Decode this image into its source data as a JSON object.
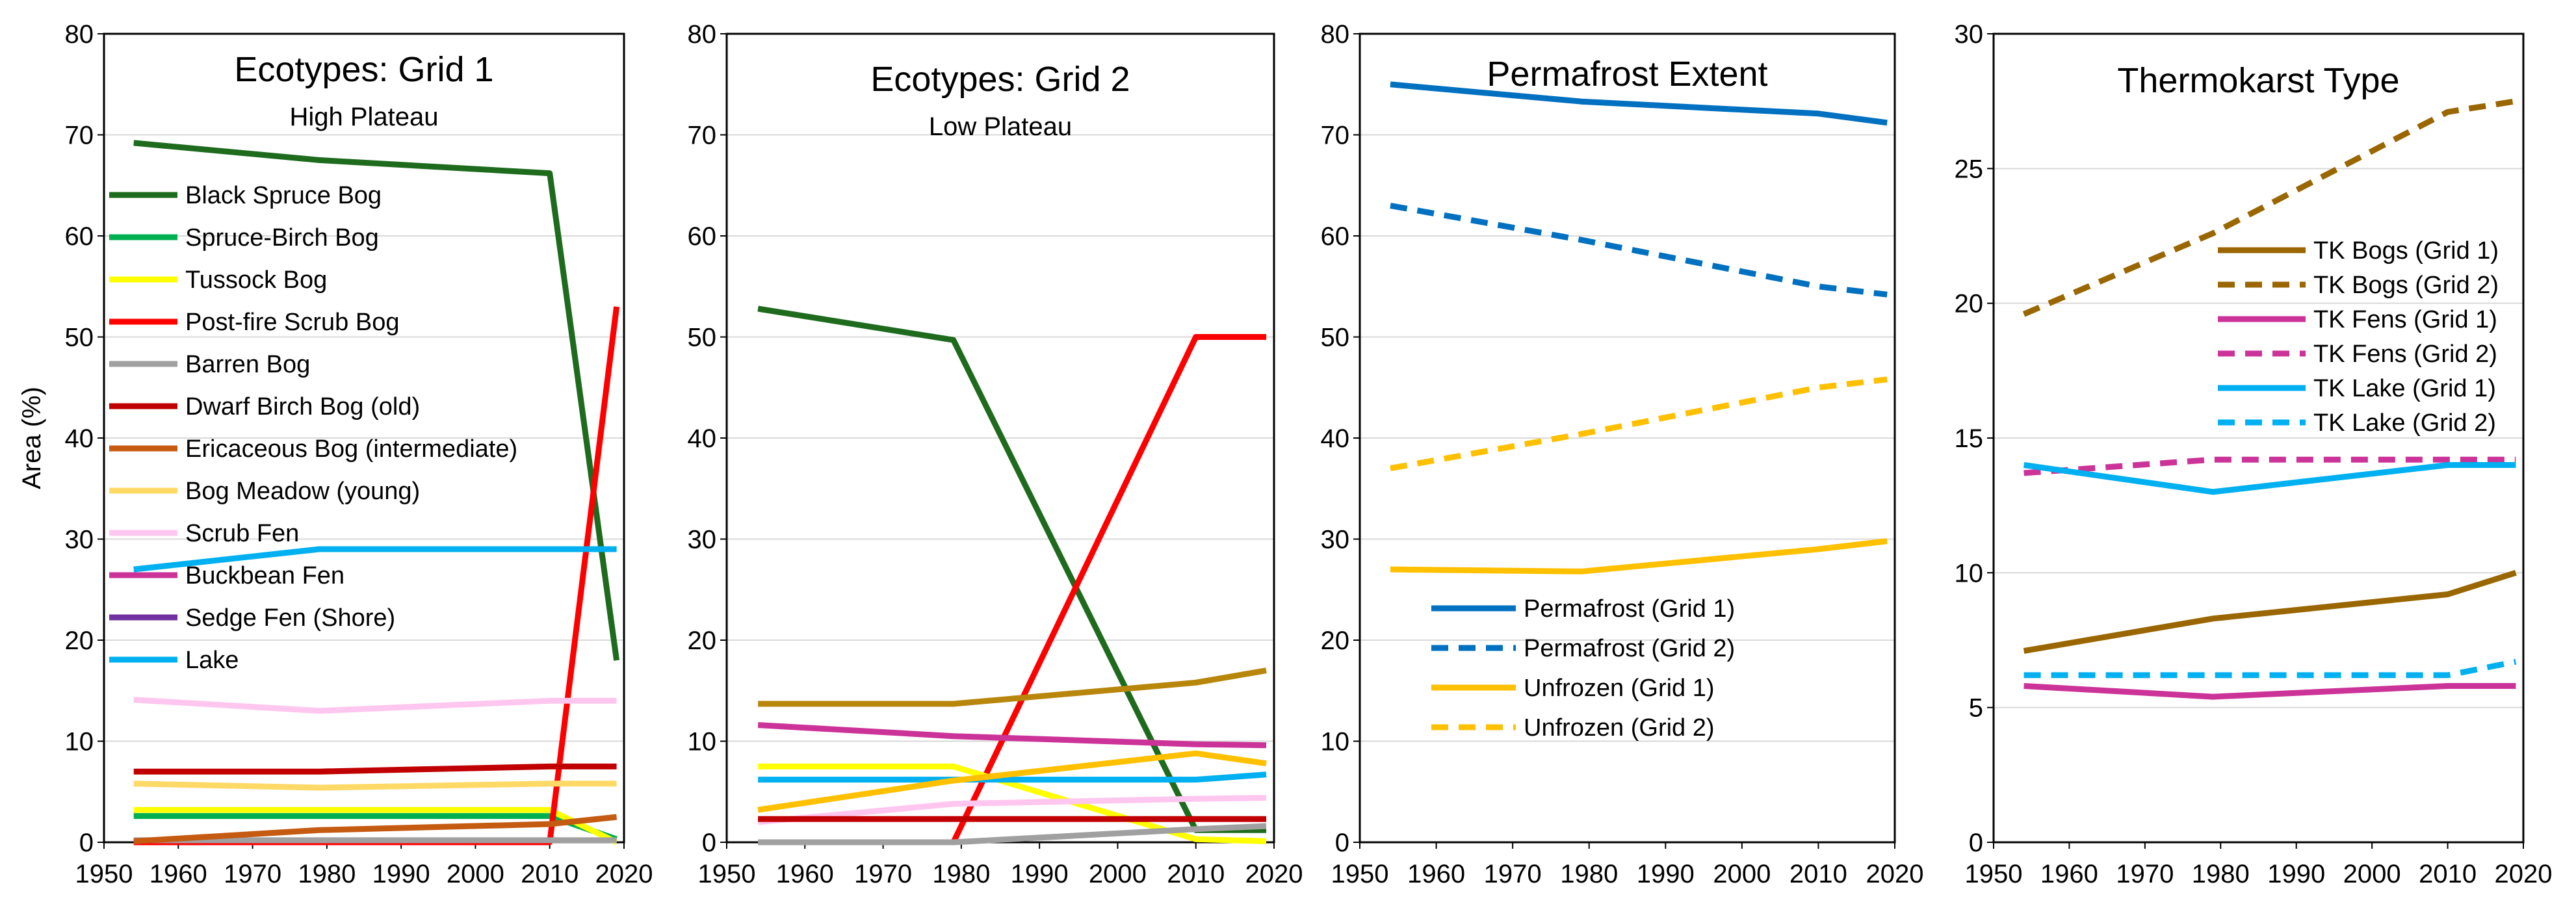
{
  "chart_data": [
    {
      "type": "line",
      "title": "Ecotypes: Grid 1",
      "subtitle": "High Plateau",
      "ylabel": "Area (%)",
      "xlabel": "",
      "xlim": [
        1950,
        2020
      ],
      "ylim": [
        0,
        80
      ],
      "xticks": [
        "1950",
        "1960",
        "1970",
        "1980",
        "1990",
        "2000",
        "2010",
        "2020"
      ],
      "yticks": [
        "0",
        "10",
        "20",
        "30",
        "40",
        "50",
        "60",
        "70",
        "80"
      ],
      "legend_position": "left",
      "series": [
        {
          "name": "Black Spruce Bog",
          "color": "#1e6b1e",
          "dash": "solid",
          "points": [
            [
              1954,
              69.2
            ],
            [
              1979,
              67.5
            ],
            [
              2010,
              66.2
            ],
            [
              2019,
              18
            ]
          ]
        },
        {
          "name": "Spruce-Birch Bog",
          "color": "#00b050",
          "dash": "solid",
          "points": [
            [
              1954,
              2.6
            ],
            [
              1979,
              2.6
            ],
            [
              2010,
              2.6
            ],
            [
              2019,
              0.3
            ]
          ]
        },
        {
          "name": "Tussock Bog",
          "color": "#ffff00",
          "dash": "solid",
          "points": [
            [
              1954,
              3.2
            ],
            [
              1979,
              3.2
            ],
            [
              2010,
              3.2
            ],
            [
              2019,
              0
            ]
          ]
        },
        {
          "name": "Post-fire Scrub Bog",
          "color": "#ff0000",
          "dash": "solid",
          "points": [
            [
              1954,
              0
            ],
            [
              1979,
              0
            ],
            [
              2010,
              0
            ],
            [
              2019,
              53
            ]
          ]
        },
        {
          "name": "Barren Bog",
          "color": "#a0a0a0",
          "dash": "solid",
          "points": [
            [
              1954,
              0.2
            ],
            [
              1979,
              0.2
            ],
            [
              2010,
              0.2
            ],
            [
              2019,
              0.2
            ]
          ]
        },
        {
          "name": "Dwarf Birch Bog (old)",
          "color": "#c00000",
          "dash": "solid",
          "points": [
            [
              1954,
              7
            ],
            [
              1979,
              7
            ],
            [
              2010,
              7.5
            ],
            [
              2019,
              7.5
            ]
          ]
        },
        {
          "name": "Ericaceous Bog (intermediate)",
          "color": "#c55a11",
          "dash": "solid",
          "points": [
            [
              1954,
              0.1
            ],
            [
              1979,
              1.2
            ],
            [
              2010,
              1.8
            ],
            [
              2019,
              2.5
            ]
          ]
        },
        {
          "name": "Bog Meadow (young)",
          "color": "#ffd966",
          "dash": "solid",
          "points": [
            [
              1954,
              5.8
            ],
            [
              1979,
              5.4
            ],
            [
              2010,
              5.8
            ],
            [
              2019,
              5.8
            ]
          ]
        },
        {
          "name": "Scrub Fen",
          "color": "#ffc6f0",
          "dash": "solid",
          "points": [
            [
              1954,
              14.1
            ],
            [
              1979,
              13
            ],
            [
              2010,
              14
            ],
            [
              2019,
              14
            ]
          ]
        },
        {
          "name": "Buckbean Fen",
          "color": "#cc3399",
          "dash": "solid",
          "points": []
        },
        {
          "name": "Sedge Fen (Shore)",
          "color": "#7030a0",
          "dash": "solid",
          "points": []
        },
        {
          "name": "Lake",
          "color": "#00b0f0",
          "dash": "solid",
          "points": [
            [
              1954,
              27
            ],
            [
              1979,
              29
            ],
            [
              2010,
              29
            ],
            [
              2019,
              29
            ]
          ]
        }
      ]
    },
    {
      "type": "line",
      "title": "Ecotypes: Grid 2",
      "subtitle": "Low Plateau",
      "xlim": [
        1950,
        2020
      ],
      "ylim": [
        0,
        80
      ],
      "xticks": [
        "1950",
        "1960",
        "1970",
        "1980",
        "1990",
        "2000",
        "2010",
        "2020"
      ],
      "yticks": [
        "0",
        "10",
        "20",
        "30",
        "40",
        "50",
        "60",
        "70",
        "80"
      ],
      "series": [
        {
          "name": "Black Spruce Bog",
          "color": "#1e6b1e",
          "dash": "solid",
          "points": [
            [
              1954,
              52.8
            ],
            [
              1979,
              49.7
            ],
            [
              2010,
              1.2
            ],
            [
              2019,
              1.2
            ]
          ]
        },
        {
          "name": "Post-fire Scrub Bog",
          "color": "#ff0000",
          "dash": "solid",
          "points": [
            [
              1979,
              0
            ],
            [
              2010,
              50
            ],
            [
              2019,
              50
            ]
          ]
        },
        {
          "name": "Ericaceous Bog (intermediate)",
          "color": "#b8860b",
          "dash": "solid",
          "points": [
            [
              1954,
              13.7
            ],
            [
              1979,
              13.7
            ],
            [
              2010,
              15.8
            ],
            [
              2019,
              17
            ]
          ]
        },
        {
          "name": "Buckbean Fen",
          "color": "#cc3399",
          "dash": "solid",
          "points": [
            [
              1954,
              11.6
            ],
            [
              1979,
              10.5
            ],
            [
              2010,
              9.7
            ],
            [
              2019,
              9.6
            ]
          ]
        },
        {
          "name": "Tussock Bog",
          "color": "#ffff00",
          "dash": "solid",
          "points": [
            [
              1954,
              7.5
            ],
            [
              1979,
              7.5
            ],
            [
              2010,
              0.3
            ],
            [
              2019,
              0.1
            ]
          ]
        },
        {
          "name": "Lake",
          "color": "#00b0f0",
          "dash": "solid",
          "points": [
            [
              1954,
              6.2
            ],
            [
              1979,
              6.2
            ],
            [
              2010,
              6.2
            ],
            [
              2019,
              6.7
            ]
          ]
        },
        {
          "name": "Bog Meadow (young)",
          "color": "#ffc000",
          "dash": "solid",
          "points": [
            [
              1954,
              3.2
            ],
            [
              1979,
              6.1
            ],
            [
              2010,
              8.8
            ],
            [
              2019,
              7.8
            ]
          ]
        },
        {
          "name": "Scrub Fen",
          "color": "#ffc6f0",
          "dash": "solid",
          "points": [
            [
              1954,
              2
            ],
            [
              1979,
              3.8
            ],
            [
              2010,
              4.3
            ],
            [
              2019,
              4.4
            ]
          ]
        },
        {
          "name": "Dwarf Birch Bog (old)",
          "color": "#c00000",
          "dash": "solid",
          "points": [
            [
              1954,
              2.3
            ],
            [
              1979,
              2.3
            ],
            [
              2010,
              2.3
            ],
            [
              2019,
              2.3
            ]
          ]
        },
        {
          "name": "Barren Bog",
          "color": "#a0a0a0",
          "dash": "solid",
          "points": [
            [
              1954,
              0
            ],
            [
              1979,
              0
            ],
            [
              2010,
              1.3
            ],
            [
              2019,
              1.6
            ]
          ]
        }
      ]
    },
    {
      "type": "line",
      "title": "Permafrost Extent",
      "xlim": [
        1950,
        2020
      ],
      "ylim": [
        0,
        80
      ],
      "xticks": [
        "1950",
        "1960",
        "1970",
        "1980",
        "1990",
        "2000",
        "2010",
        "2020"
      ],
      "yticks": [
        "0",
        "10",
        "20",
        "30",
        "40",
        "50",
        "60",
        "70",
        "80"
      ],
      "legend_position": "lower-left",
      "series": [
        {
          "name": "Permafrost (Grid 1)",
          "color": "#0070c0",
          "dash": "solid",
          "points": [
            [
              1954,
              75
            ],
            [
              1979,
              73.3
            ],
            [
              2010,
              72.1
            ],
            [
              2019,
              71.2
            ]
          ]
        },
        {
          "name": "Permafrost (Grid 2)",
          "color": "#0070c0",
          "dash": "dashed",
          "points": [
            [
              1954,
              63
            ],
            [
              1979,
              59.6
            ],
            [
              2010,
              55
            ],
            [
              2019,
              54.2
            ]
          ]
        },
        {
          "name": "Unfrozen (Grid 1)",
          "color": "#ffc000",
          "dash": "solid",
          "points": [
            [
              1954,
              27
            ],
            [
              1979,
              26.8
            ],
            [
              2010,
              29
            ],
            [
              2019,
              29.8
            ]
          ]
        },
        {
          "name": "Unfrozen (Grid 2)",
          "color": "#ffc000",
          "dash": "dashed",
          "points": [
            [
              1954,
              37
            ],
            [
              1979,
              40.4
            ],
            [
              2010,
              45
            ],
            [
              2019,
              45.8
            ]
          ]
        }
      ]
    },
    {
      "type": "line",
      "title": "Thermokarst Type",
      "xlim": [
        1950,
        2020
      ],
      "ylim": [
        0,
        30
      ],
      "xticks": [
        "1950",
        "1960",
        "1970",
        "1980",
        "1990",
        "2000",
        "2010",
        "2020"
      ],
      "yticks": [
        "0",
        "5",
        "10",
        "15",
        "20",
        "25",
        "30"
      ],
      "legend_position": "right",
      "series": [
        {
          "name": "TK Bogs (Grid 1)",
          "color": "#996600",
          "dash": "solid",
          "points": [
            [
              1954,
              7.1
            ],
            [
              1979,
              8.3
            ],
            [
              2010,
              9.2
            ],
            [
              2019,
              10
            ]
          ]
        },
        {
          "name": "TK Bogs (Grid 2)",
          "color": "#996600",
          "dash": "dashed",
          "points": [
            [
              1954,
              19.6
            ],
            [
              1979,
              22.6
            ],
            [
              2010,
              27.1
            ],
            [
              2019,
              27.5
            ]
          ]
        },
        {
          "name": "TK Fens (Grid 1)",
          "color": "#cc3399",
          "dash": "solid",
          "points": [
            [
              1954,
              5.8
            ],
            [
              1979,
              5.4
            ],
            [
              2010,
              5.8
            ],
            [
              2019,
              5.8
            ]
          ]
        },
        {
          "name": "TK Fens (Grid 2)",
          "color": "#cc3399",
          "dash": "dashed",
          "points": [
            [
              1954,
              13.7
            ],
            [
              1979,
              14.2
            ],
            [
              2010,
              14.2
            ],
            [
              2019,
              14.2
            ]
          ]
        },
        {
          "name": "TK Lake (Grid 1)",
          "color": "#00b0f0",
          "dash": "solid",
          "points": [
            [
              1954,
              14
            ],
            [
              1979,
              13
            ],
            [
              2010,
              14
            ],
            [
              2019,
              14
            ]
          ]
        },
        {
          "name": "TK Lake (Grid 2)",
          "color": "#00b0f0",
          "dash": "dashed",
          "points": [
            [
              1954,
              6.2
            ],
            [
              1979,
              6.2
            ],
            [
              2010,
              6.2
            ],
            [
              2019,
              6.7
            ]
          ]
        }
      ]
    }
  ]
}
